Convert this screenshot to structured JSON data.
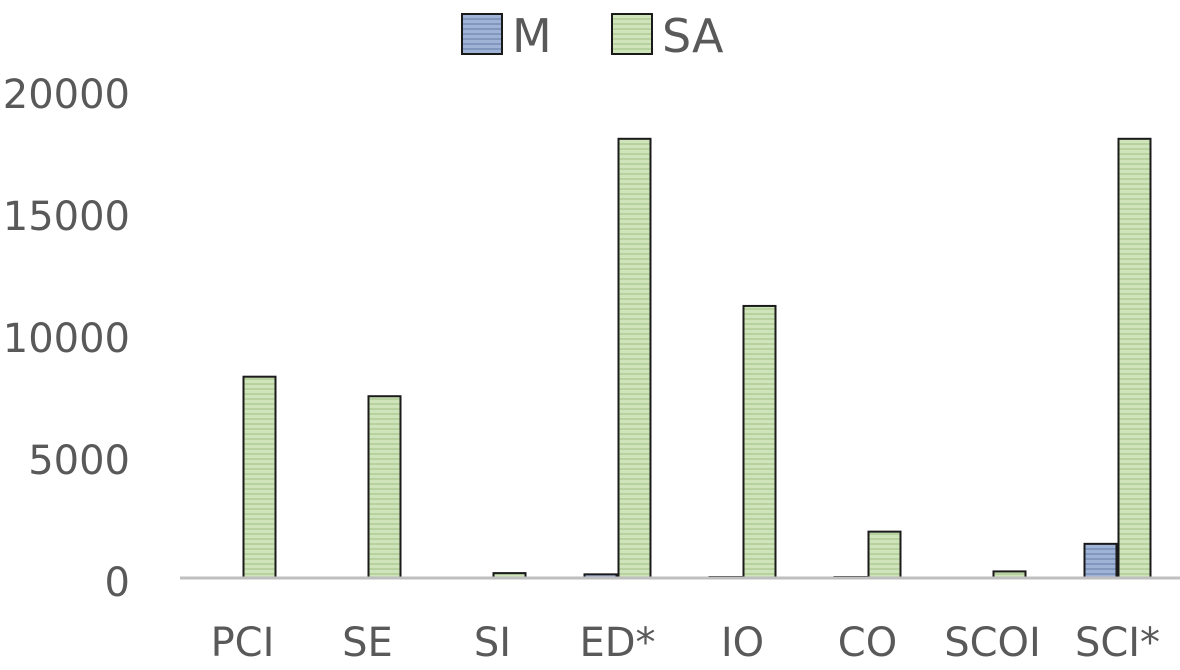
{
  "chart_data": {
    "type": "bar",
    "categories": [
      "PCI",
      "SE",
      "SI",
      "ED*",
      "IO",
      "CO",
      "SCOI",
      "SCI*"
    ],
    "series": [
      {
        "name": "M",
        "color": "#9fb3d6",
        "values": [
          0,
          0,
          0,
          150,
          40,
          40,
          0,
          1400
        ]
      },
      {
        "name": "SA",
        "color": "#c6dfae",
        "values": [
          8250,
          7450,
          200,
          18000,
          11150,
          1900,
          270,
          18000
        ]
      }
    ],
    "ylim": [
      0,
      20000
    ],
    "yticks": [
      "0",
      "5000",
      "10000",
      "15000",
      "20000"
    ],
    "grid": false,
    "legend_position": "top"
  }
}
